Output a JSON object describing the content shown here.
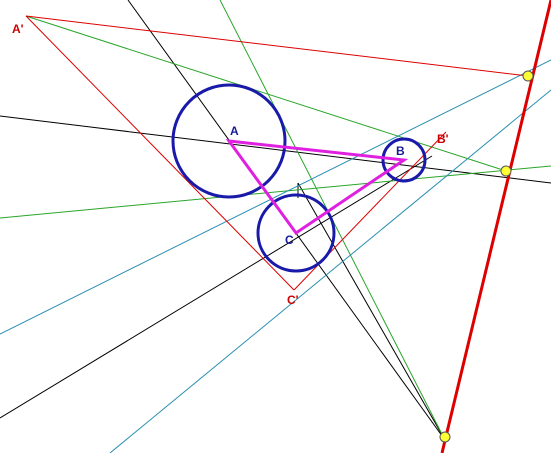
{
  "labels": {
    "A": "A",
    "B": "B",
    "C": "C",
    "A_prime": "A'",
    "B_prime": "B'",
    "C_prime": "C'"
  },
  "colors": {
    "circle": "#1a1aaa",
    "triangle": "#e020e0",
    "red_line": "#dd0000",
    "label_blue": "#1a1a99",
    "label_red": "#cc0000",
    "green": "#2aa52a",
    "teal": "#2a8fb0",
    "black": "#000000",
    "point_fill": "#ffff33"
  }
}
